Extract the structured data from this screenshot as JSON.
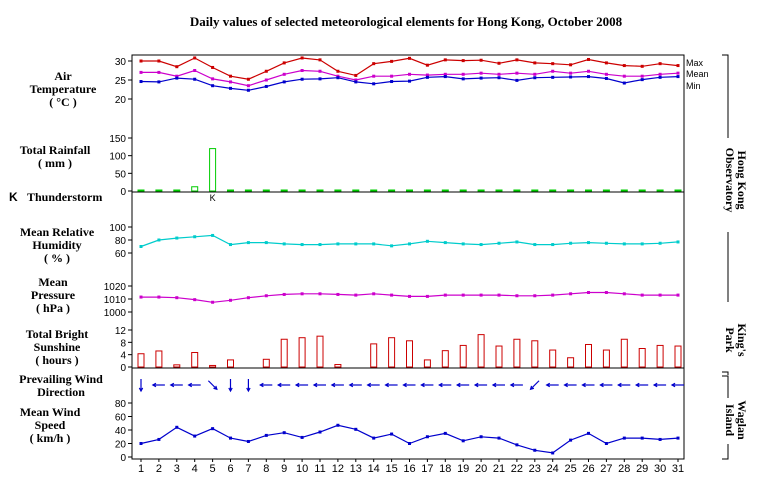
{
  "title": "Daily values of selected meteorological elements for Hong Kong, October 2008",
  "station_labels": {
    "observatory": [
      "Hong Kong",
      "Observatory"
    ],
    "kings_park": [
      "King's",
      "Park"
    ],
    "waglan": [
      "Waglan",
      "Island"
    ]
  },
  "panel_labels": {
    "temperature": [
      "Air",
      "Temperature",
      "( °C )"
    ],
    "rainfall": [
      "Total Rainfall",
      "( mm )"
    ],
    "thunderstorm": "Thunderstorm",
    "humidity": [
      "Mean Relative",
      "Humidity",
      "( % )"
    ],
    "pressure": [
      "Mean",
      "Pressure",
      "( hPa )"
    ],
    "sunshine": [
      "Total Bright",
      "Sunshine",
      "( hours )"
    ],
    "wind_direction": [
      "Prevailing Wind",
      "Direction"
    ],
    "wind_speed": [
      "Mean Wind",
      "Speed",
      "( km/h )"
    ]
  },
  "thunder_symbol": "K",
  "thunder_day_symbol": "K",
  "colors": {
    "max": "#cc0000",
    "mean": "#cc00cc",
    "min": "#0000cc",
    "rainfall": "#00cc00",
    "humidity": "#00cccc",
    "pressure": "#cc00cc",
    "sunshine": "#cc0000",
    "wind_dir": "#0000cc",
    "wind_speed": "#0000cc"
  },
  "chart_data": {
    "type": "line",
    "title": "Daily values of selected meteorological elements for Hong Kong, October 2008",
    "x": [
      "1",
      "2",
      "3",
      "4",
      "5",
      "6",
      "7",
      "8",
      "9",
      "10",
      "11",
      "12",
      "13",
      "14",
      "15",
      "16",
      "17",
      "18",
      "19",
      "20",
      "21",
      "22",
      "23",
      "24",
      "25",
      "26",
      "27",
      "28",
      "29",
      "30",
      "31"
    ],
    "temperature": {
      "ticks": [
        "30",
        "25",
        "20"
      ],
      "ylim": [
        20,
        30
      ],
      "series": [
        {
          "name": "Max",
          "values": [
            30.0,
            30.0,
            28.5,
            30.8,
            28.3,
            26.0,
            25.2,
            27.3,
            29.5,
            30.8,
            30.3,
            27.3,
            26.2,
            29.3,
            29.9,
            30.7,
            28.9,
            30.3,
            30.1,
            30.2,
            29.4,
            30.3,
            29.5,
            29.3,
            29.0,
            30.4,
            29.5,
            28.8,
            28.6,
            29.3,
            28.8
          ]
        },
        {
          "name": "Mean",
          "values": [
            27.0,
            27.0,
            26.0,
            27.5,
            25.3,
            24.5,
            23.5,
            25.0,
            26.5,
            27.5,
            27.3,
            26.0,
            25.0,
            26.0,
            26.0,
            26.5,
            26.3,
            26.5,
            26.5,
            26.8,
            26.5,
            26.8,
            26.5,
            27.3,
            26.8,
            27.3,
            26.5,
            26.0,
            26.0,
            26.5,
            26.8
          ]
        },
        {
          "name": "Min",
          "values": [
            24.6,
            24.5,
            25.5,
            25.2,
            23.5,
            22.8,
            22.3,
            23.3,
            24.5,
            25.2,
            25.3,
            25.6,
            24.5,
            24.0,
            24.6,
            24.7,
            25.7,
            25.9,
            25.3,
            25.5,
            25.6,
            24.9,
            25.6,
            25.7,
            25.8,
            25.9,
            25.4,
            24.2,
            25.1,
            25.7,
            25.9
          ]
        }
      ]
    },
    "rainfall": {
      "type": "bar",
      "ticks": [
        "150",
        "100",
        "50",
        "0"
      ],
      "ylim": [
        0,
        150
      ],
      "values": [
        0,
        0.5,
        1,
        12,
        120,
        0,
        0,
        0.2,
        0,
        0,
        0,
        0,
        0.1,
        0,
        0,
        0,
        0.2,
        0,
        0.4,
        0,
        0,
        0,
        0,
        0,
        0,
        0,
        0,
        0.1,
        0,
        0,
        0
      ]
    },
    "thunderstorm_days": [
      "5"
    ],
    "humidity": {
      "ticks": [
        "100",
        "80",
        "60"
      ],
      "ylim": [
        55,
        110
      ],
      "values": [
        70,
        80,
        83,
        85,
        87,
        73,
        76,
        76,
        74,
        73,
        73,
        74,
        74,
        74,
        71,
        74,
        78,
        76,
        74,
        73,
        75,
        77,
        73,
        73,
        75,
        76,
        75,
        74,
        74,
        75,
        77
      ]
    },
    "pressure": {
      "ticks": [
        "1020",
        "1010",
        "1000"
      ],
      "ylim": [
        1000,
        1030
      ],
      "values": [
        1011.5,
        1011.5,
        1011,
        1009.5,
        1007.5,
        1009,
        1011,
        1012.5,
        1013.5,
        1014,
        1014,
        1013.5,
        1013,
        1014,
        1013,
        1012,
        1012,
        1013,
        1013,
        1013,
        1013,
        1012.5,
        1012.5,
        1013,
        1014,
        1015,
        1015,
        1014,
        1013,
        1013,
        1013
      ]
    },
    "sunshine": {
      "type": "bar",
      "ticks": [
        "12",
        "8",
        "4",
        "0"
      ],
      "ylim": [
        0,
        12
      ],
      "values": [
        4.3,
        5.2,
        0.7,
        4.7,
        0.5,
        2.3,
        0,
        2.5,
        9.0,
        9.5,
        10.0,
        0.8,
        0,
        7.5,
        9.5,
        8.5,
        2.3,
        5.3,
        7.0,
        10.5,
        6.8,
        9.0,
        8.5,
        5.5,
        3.0,
        7.3,
        5.5,
        9.0,
        6.0,
        7.0,
        6.8
      ]
    },
    "wind_direction": {
      "values": [
        "N",
        "E",
        "E",
        "E",
        "NW",
        "N",
        "N",
        "E",
        "E",
        "E",
        "E",
        "E",
        "E",
        "E",
        "E",
        "E",
        "E",
        "E",
        "E",
        "E",
        "E",
        "E",
        "NE",
        "E",
        "E",
        "E",
        "E",
        "E",
        "E",
        "E",
        "E"
      ]
    },
    "wind_speed": {
      "ticks": [
        "80",
        "60",
        "40",
        "20",
        "0"
      ],
      "ylim": [
        0,
        100
      ],
      "values": [
        20,
        26,
        44,
        31,
        42,
        28,
        23,
        32,
        36,
        29,
        37,
        47,
        41,
        28,
        34,
        20,
        30,
        35,
        24,
        30,
        28,
        18,
        10,
        6,
        25,
        35,
        20,
        28,
        28,
        26,
        28
      ]
    }
  }
}
